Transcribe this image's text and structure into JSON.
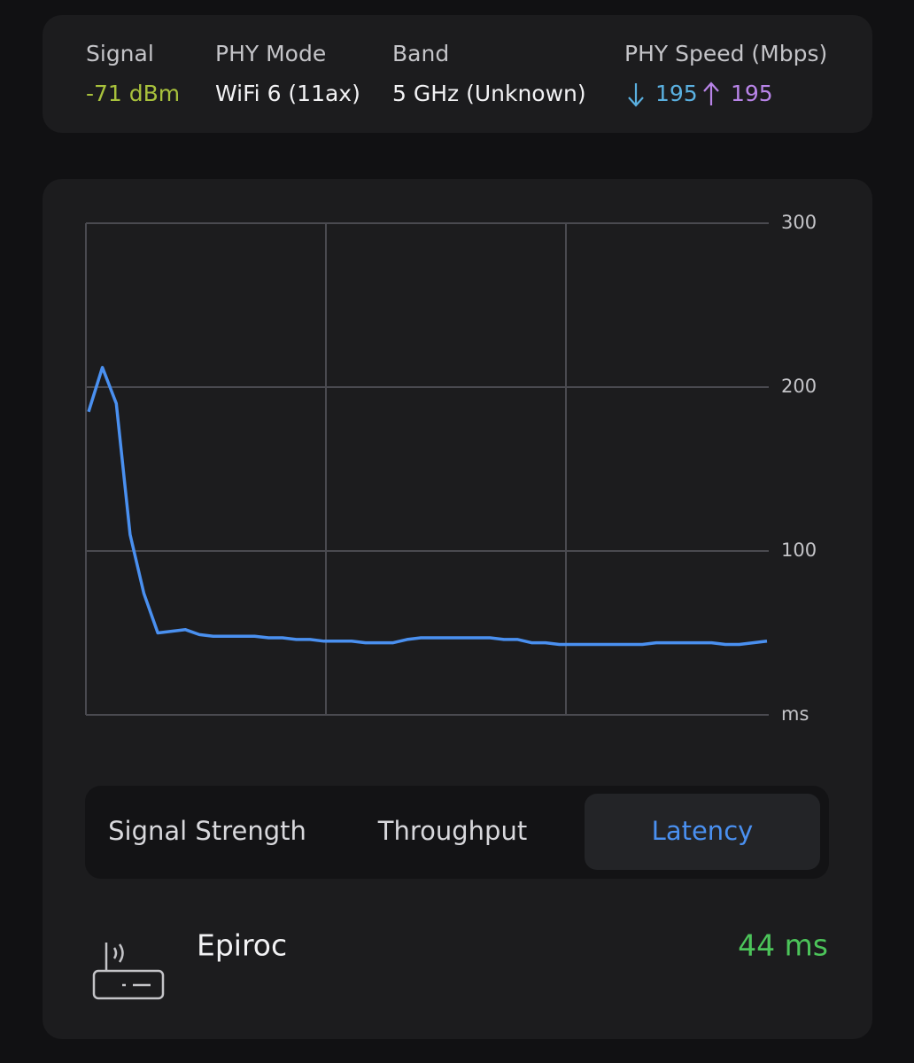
{
  "info": {
    "signal_label": "Signal",
    "signal_value": "-71 dBm",
    "mode_label": "PHY Mode",
    "mode_value": "WiFi 6 (11ax)",
    "band_label": "Band",
    "band_value": "5 GHz (Unknown)",
    "speed_label": "PHY Speed (Mbps)",
    "speed_down": "195",
    "speed_up": "195"
  },
  "chart_data": {
    "type": "line",
    "series": [
      {
        "name": "Latency",
        "color": "#4a90f0",
        "values": [
          185,
          212,
          190,
          110,
          74,
          50,
          51,
          52,
          49,
          48,
          48,
          48,
          48,
          47,
          47,
          46,
          46,
          45,
          45,
          45,
          44,
          44,
          44,
          46,
          47,
          47,
          47,
          47,
          47,
          47,
          46,
          46,
          44,
          44,
          43,
          43,
          43,
          43,
          43,
          43,
          43,
          44,
          44,
          44,
          44,
          44,
          43,
          43,
          44,
          45
        ]
      }
    ],
    "ylim": [
      0,
      300
    ],
    "yticks": [
      {
        "value": 0,
        "label": "ms"
      },
      100,
      200,
      300
    ],
    "grid": true
  },
  "tabs": [
    "Signal Strength",
    "Throughput",
    "Latency"
  ],
  "active_tab": 2,
  "device": {
    "name": "Epiroc",
    "latency": "44 ms"
  }
}
